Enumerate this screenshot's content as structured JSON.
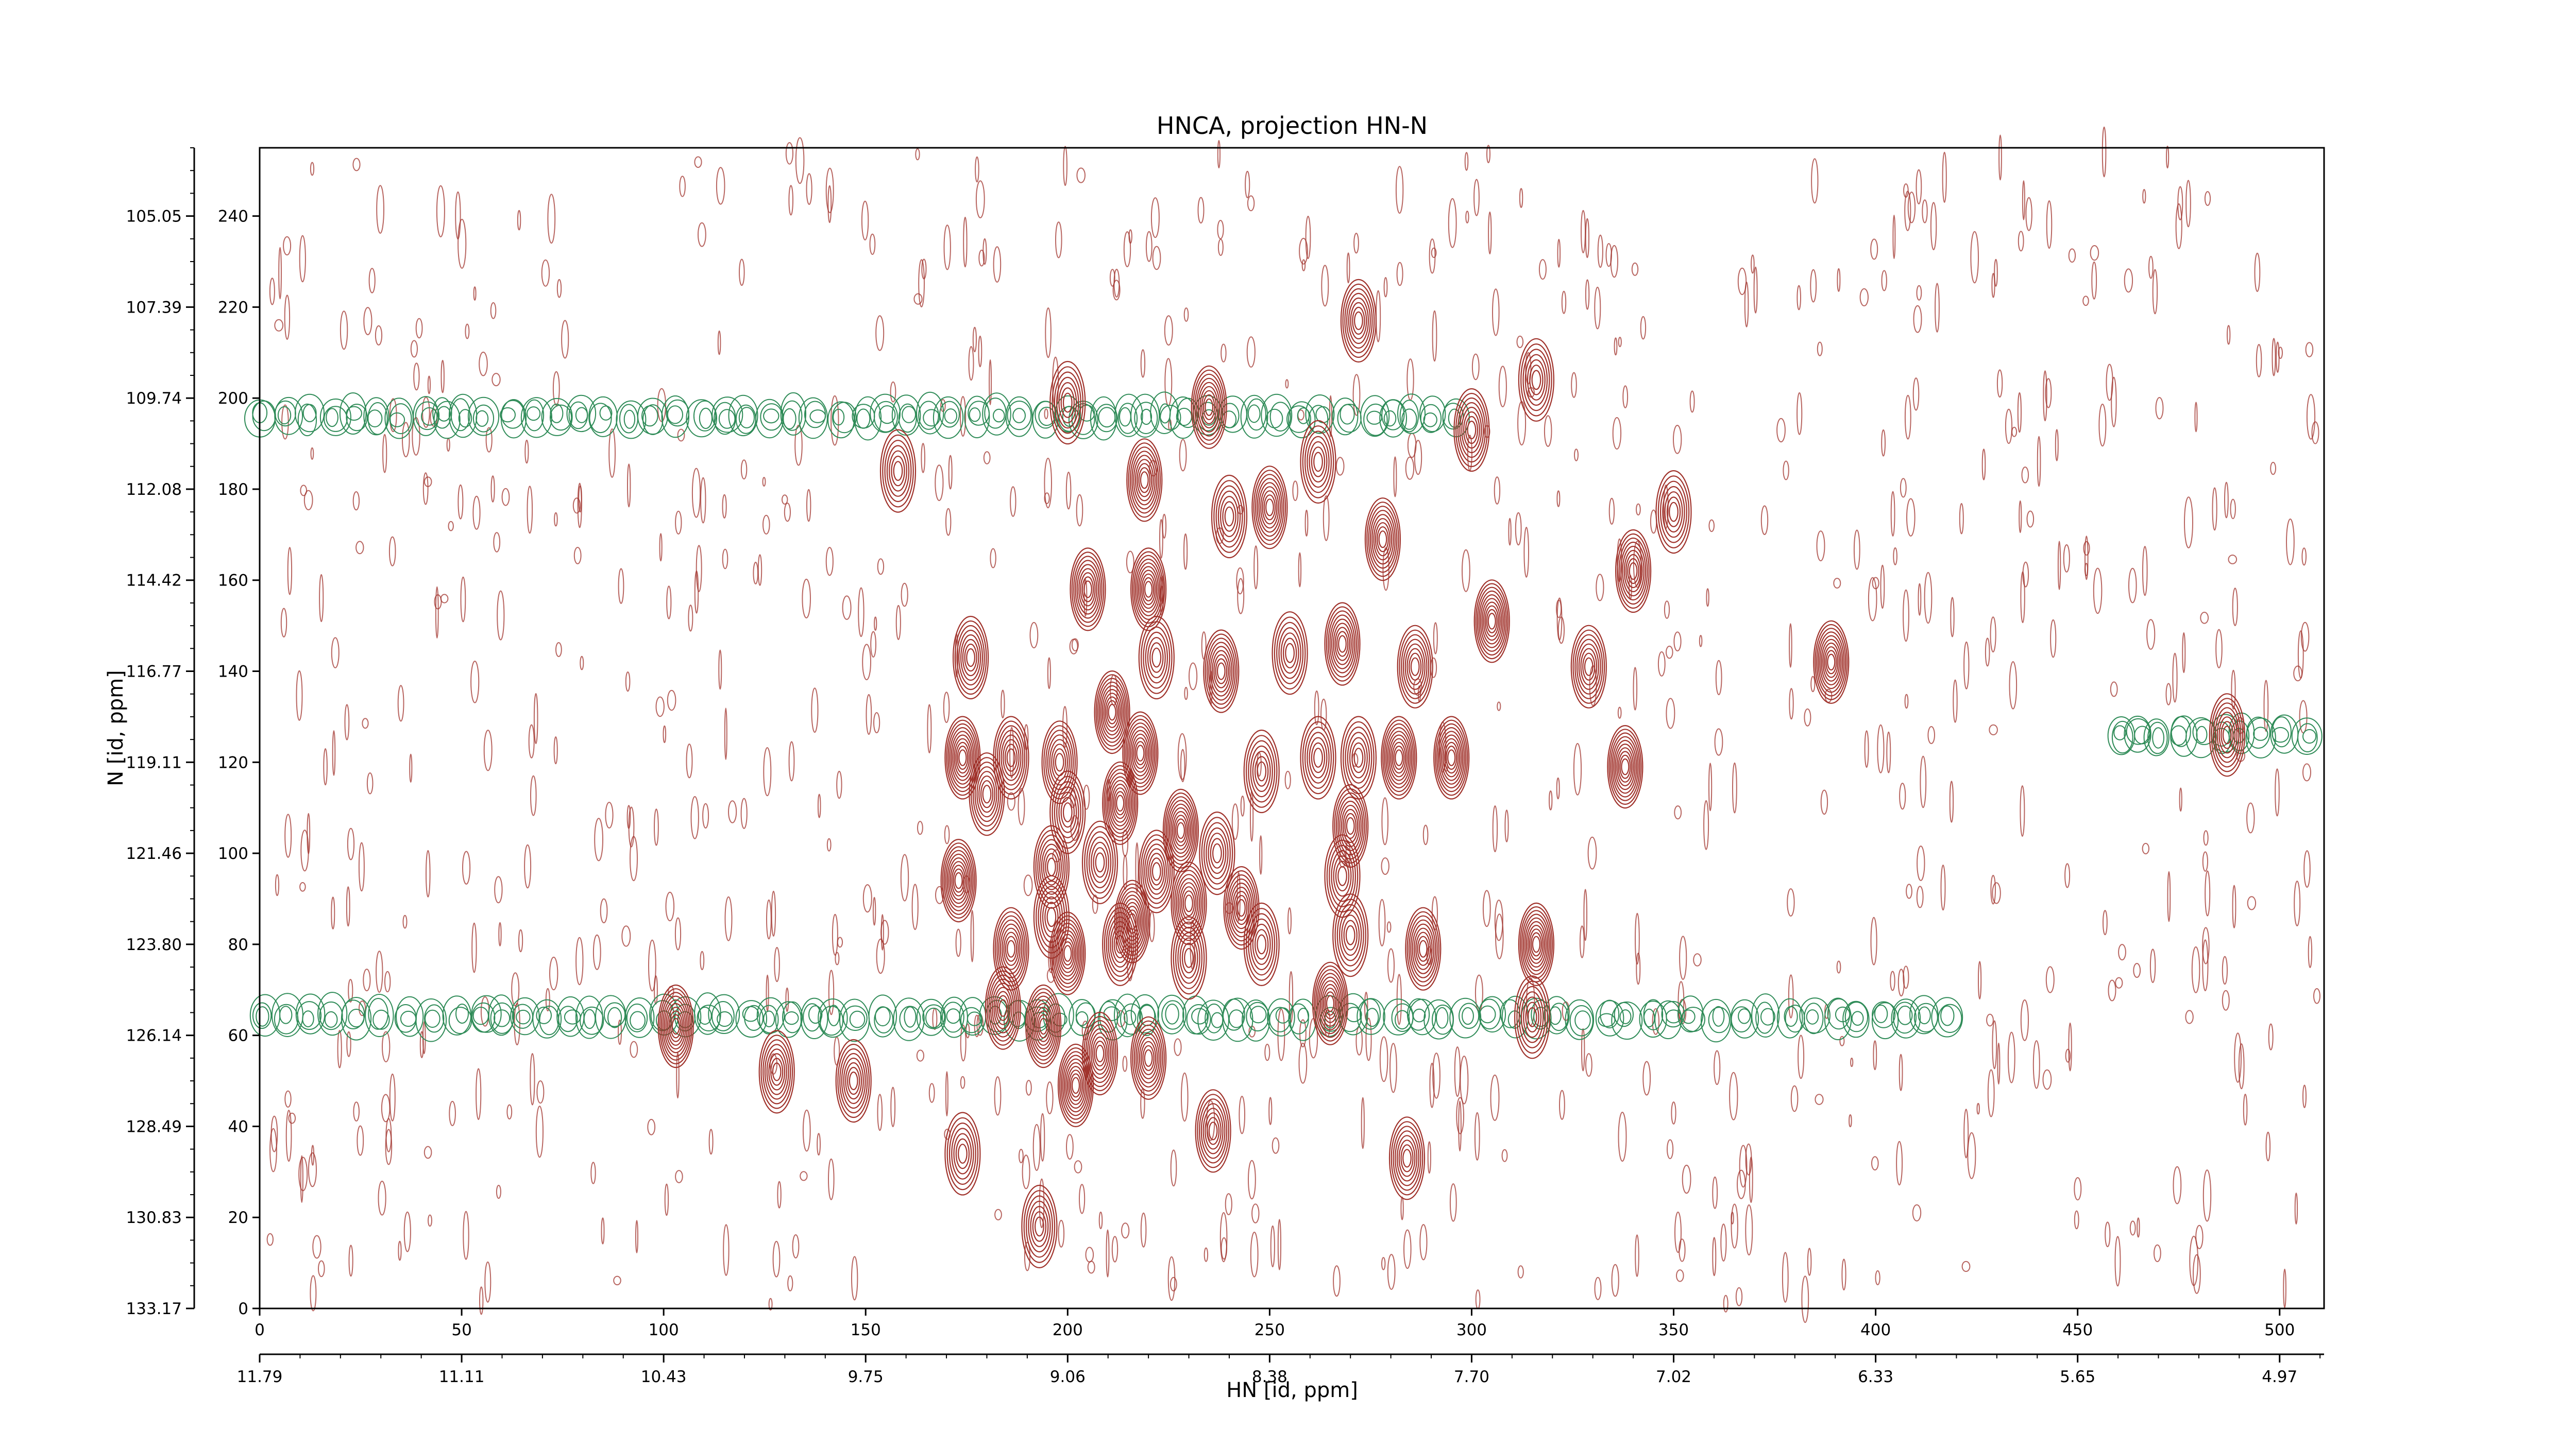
{
  "chart_data": {
    "type": "contour",
    "title": "HNCA, projection HN-N",
    "xlabel": "HN [id, ppm]",
    "ylabel": "N [id, ppm]",
    "xlim": [
      0,
      511
    ],
    "ylim": [
      0,
      255
    ],
    "x_index_ticks": [
      0,
      50,
      100,
      150,
      200,
      250,
      300,
      350,
      400,
      450,
      500
    ],
    "x_ppm_ticks": [
      "11.79",
      "11.11",
      "10.43",
      "9.75",
      "9.06",
      "8.38",
      "7.70",
      "7.02",
      "6.33",
      "5.65",
      "4.97"
    ],
    "y_index_ticks": [
      0,
      20,
      40,
      60,
      80,
      100,
      120,
      140,
      160,
      180,
      200,
      220,
      240
    ],
    "y_ppm_ticks": [
      "133.17",
      "130.83",
      "128.49",
      "126.14",
      "123.80",
      "121.46",
      "119.11",
      "116.77",
      "114.42",
      "112.08",
      "109.74",
      "107.39",
      "105.05"
    ],
    "grid": false,
    "colors": {
      "positive": "#a0322b",
      "negative": "#2e8b57"
    },
    "peaks": [
      {
        "x": 272,
        "y": 217
      },
      {
        "x": 316,
        "y": 204
      },
      {
        "x": 200,
        "y": 199
      },
      {
        "x": 235,
        "y": 198
      },
      {
        "x": 262,
        "y": 186
      },
      {
        "x": 300,
        "y": 193
      },
      {
        "x": 158,
        "y": 184
      },
      {
        "x": 219,
        "y": 182
      },
      {
        "x": 240,
        "y": 174
      },
      {
        "x": 250,
        "y": 176
      },
      {
        "x": 350,
        "y": 175
      },
      {
        "x": 278,
        "y": 169
      },
      {
        "x": 205,
        "y": 158
      },
      {
        "x": 220,
        "y": 158
      },
      {
        "x": 305,
        "y": 151
      },
      {
        "x": 340,
        "y": 162
      },
      {
        "x": 176,
        "y": 143
      },
      {
        "x": 222,
        "y": 143
      },
      {
        "x": 238,
        "y": 140
      },
      {
        "x": 255,
        "y": 144
      },
      {
        "x": 268,
        "y": 146
      },
      {
        "x": 286,
        "y": 141
      },
      {
        "x": 329,
        "y": 141
      },
      {
        "x": 389,
        "y": 142
      },
      {
        "x": 211,
        "y": 131
      },
      {
        "x": 174,
        "y": 121
      },
      {
        "x": 186,
        "y": 121
      },
      {
        "x": 198,
        "y": 120
      },
      {
        "x": 218,
        "y": 122
      },
      {
        "x": 248,
        "y": 118
      },
      {
        "x": 262,
        "y": 121
      },
      {
        "x": 272,
        "y": 121
      },
      {
        "x": 282,
        "y": 121
      },
      {
        "x": 295,
        "y": 121
      },
      {
        "x": 338,
        "y": 119
      },
      {
        "x": 180,
        "y": 113
      },
      {
        "x": 200,
        "y": 109
      },
      {
        "x": 213,
        "y": 111
      },
      {
        "x": 228,
        "y": 105
      },
      {
        "x": 237,
        "y": 100
      },
      {
        "x": 270,
        "y": 106
      },
      {
        "x": 173,
        "y": 94
      },
      {
        "x": 196,
        "y": 97
      },
      {
        "x": 208,
        "y": 98
      },
      {
        "x": 222,
        "y": 96
      },
      {
        "x": 268,
        "y": 95
      },
      {
        "x": 196,
        "y": 86
      },
      {
        "x": 216,
        "y": 85
      },
      {
        "x": 230,
        "y": 89
      },
      {
        "x": 243,
        "y": 88
      },
      {
        "x": 186,
        "y": 79
      },
      {
        "x": 200,
        "y": 78
      },
      {
        "x": 213,
        "y": 80
      },
      {
        "x": 230,
        "y": 77
      },
      {
        "x": 248,
        "y": 80
      },
      {
        "x": 270,
        "y": 82
      },
      {
        "x": 288,
        "y": 79
      },
      {
        "x": 316,
        "y": 80
      },
      {
        "x": 184,
        "y": 66
      },
      {
        "x": 194,
        "y": 62
      },
      {
        "x": 265,
        "y": 67
      },
      {
        "x": 315,
        "y": 64
      },
      {
        "x": 103,
        "y": 62
      },
      {
        "x": 208,
        "y": 56
      },
      {
        "x": 220,
        "y": 55
      },
      {
        "x": 128,
        "y": 52
      },
      {
        "x": 147,
        "y": 50
      },
      {
        "x": 202,
        "y": 49
      },
      {
        "x": 174,
        "y": 34
      },
      {
        "x": 236,
        "y": 39
      },
      {
        "x": 284,
        "y": 33
      },
      {
        "x": 193,
        "y": 18
      },
      {
        "x": 487,
        "y": 126
      }
    ],
    "negative_bands": [
      {
        "y": 196,
        "x_range": [
          0,
          300
        ]
      },
      {
        "y": 64,
        "x_range": [
          0,
          420
        ]
      },
      {
        "y": 126,
        "x_range": [
          460,
          511
        ]
      }
    ]
  }
}
